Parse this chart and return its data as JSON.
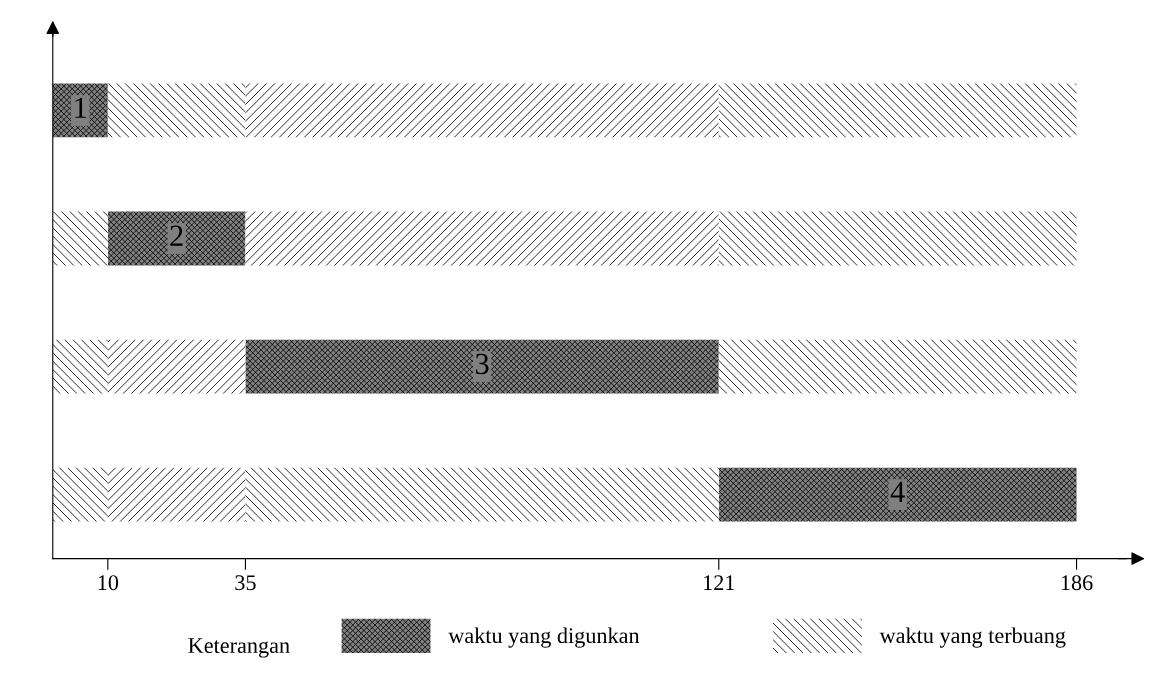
{
  "chart_data": {
    "type": "bar",
    "orientation": "horizontal",
    "categories": [
      "1",
      "2",
      "3",
      "4"
    ],
    "series": [
      {
        "name": "waktu yang digunkan",
        "color": "#808080",
        "values": [
          10,
          25,
          86,
          65
        ],
        "base": [
          0,
          10,
          35,
          121
        ]
      },
      {
        "name": "waktu yang terbuang",
        "color": "#ffffff",
        "values": [
          25,
          10,
          10,
          10
        ],
        "base": [
          10,
          0,
          0,
          0
        ]
      },
      {
        "color": "#ffffff",
        "values": [
          86,
          86,
          25,
          25
        ],
        "base": [
          35,
          35,
          10,
          10
        ]
      },
      {
        "color": "#ffffff",
        "values": [
          65,
          65,
          65,
          86
        ],
        "base": [
          121,
          121,
          121,
          35
        ]
      }
    ],
    "xlim": [
      0,
      195
    ],
    "xticks": [
      10,
      35,
      121,
      186
    ],
    "tick_labels": "x",
    "grid": false,
    "legend": "bottom",
    "annotations": [
      "Keterangan"
    ]
  }
}
